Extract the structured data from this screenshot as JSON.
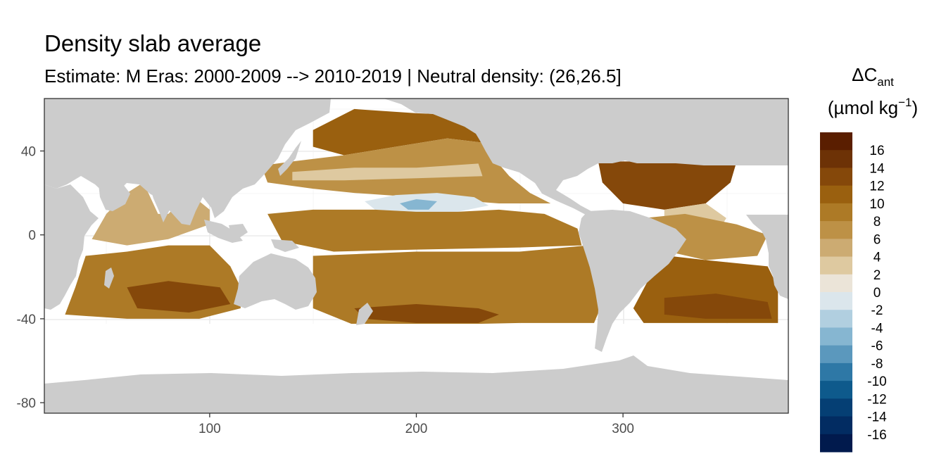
{
  "title": "Density slab average",
  "subtitle": "Estimate: M Eras: 2000-2009 --> 2010-2019 | Neutral density: (26,26.5]",
  "legend": {
    "title_symbol": "ΔC",
    "title_subscript": "ant",
    "unit_prefix": "(µmol kg",
    "unit_exponent": "−1",
    "unit_suffix": ")"
  },
  "colors": {
    "land": "#cccccc",
    "no_data": "#ffffff",
    "panel_border": "#333333",
    "grid": "#ebebeb"
  },
  "chart_data": {
    "type": "heatmap",
    "title": "Density slab average",
    "subtitle": "Estimate: M Eras: 2000-2009 --> 2010-2019 | Neutral density: (26,26.5]",
    "xlabel": "",
    "ylabel": "",
    "xlim": [
      20,
      380
    ],
    "ylim": [
      -85,
      65
    ],
    "x_ticks": [
      100,
      200,
      300
    ],
    "y_ticks": [
      40,
      0,
      -40,
      -80
    ],
    "grid": true,
    "legend_position": "right",
    "color_scale": {
      "variable": "ΔCant",
      "unit": "µmol kg−1",
      "breaks": [
        16,
        14,
        12,
        10,
        8,
        6,
        4,
        2,
        0,
        -2,
        -4,
        -6,
        -8,
        -10,
        -12,
        -14,
        -16
      ],
      "bins": [
        {
          "from": 16,
          "to": 18,
          "color": "#5a1e00"
        },
        {
          "from": 14,
          "to": 16,
          "color": "#6d3206"
        },
        {
          "from": 12,
          "to": 14,
          "color": "#85480a"
        },
        {
          "from": 10,
          "to": 12,
          "color": "#9a600f"
        },
        {
          "from": 8,
          "to": 10,
          "color": "#ad7a26"
        },
        {
          "from": 6,
          "to": 8,
          "color": "#bd9146"
        },
        {
          "from": 4,
          "to": 6,
          "color": "#ccab72"
        },
        {
          "from": 2,
          "to": 4,
          "color": "#dec9a0"
        },
        {
          "from": 0,
          "to": 2,
          "color": "#ebe4d8"
        },
        {
          "from": -2,
          "to": 0,
          "color": "#dbe6ec"
        },
        {
          "from": -4,
          "to": -2,
          "color": "#b1cfe0"
        },
        {
          "from": -6,
          "to": -4,
          "color": "#86b6d1"
        },
        {
          "from": -8,
          "to": -6,
          "color": "#5b98bd"
        },
        {
          "from": -10,
          "to": -8,
          "color": "#2e78a6"
        },
        {
          "from": -12,
          "to": -10,
          "color": "#0e5a8c"
        },
        {
          "from": -14,
          "to": -12,
          "color": "#053f74"
        },
        {
          "from": -16,
          "to": -14,
          "color": "#022c62"
        },
        {
          "from": -18,
          "to": -16,
          "color": "#011a4d"
        }
      ]
    },
    "regions": [
      {
        "name": "north-pacific-north",
        "value": 11,
        "polygon": [
          [
            150,
            50
          ],
          [
            170,
            60
          ],
          [
            200,
            58
          ],
          [
            225,
            57
          ],
          [
            235,
            50
          ],
          [
            232,
            44
          ],
          [
            215,
            46
          ],
          [
            190,
            42
          ],
          [
            165,
            38
          ],
          [
            150,
            42
          ]
        ]
      },
      {
        "name": "north-pacific-subtropical",
        "value": 6,
        "polygon": [
          [
            140,
            35
          ],
          [
            165,
            38
          ],
          [
            190,
            42
          ],
          [
            215,
            46
          ],
          [
            232,
            44
          ],
          [
            238,
            36
          ],
          [
            245,
            28
          ],
          [
            255,
            20
          ],
          [
            265,
            15
          ],
          [
            240,
            15
          ],
          [
            200,
            18
          ],
          [
            170,
            20
          ],
          [
            150,
            22
          ],
          [
            128,
            25
          ],
          [
            125,
            33
          ]
        ]
      },
      {
        "name": "kuroshio-band",
        "value": 3,
        "polygon": [
          [
            140,
            30
          ],
          [
            170,
            32
          ],
          [
            200,
            32
          ],
          [
            230,
            34
          ],
          [
            232,
            28
          ],
          [
            200,
            27
          ],
          [
            165,
            26
          ],
          [
            140,
            26
          ]
        ]
      },
      {
        "name": "central-pacific-negative",
        "value": -2,
        "polygon": [
          [
            175,
            16
          ],
          [
            190,
            19
          ],
          [
            210,
            20
          ],
          [
            228,
            18
          ],
          [
            235,
            14
          ],
          [
            220,
            11
          ],
          [
            200,
            11
          ],
          [
            180,
            12
          ]
        ]
      },
      {
        "name": "central-pacific-core",
        "value": -6,
        "polygon": [
          [
            192,
            15
          ],
          [
            200,
            17
          ],
          [
            210,
            16
          ],
          [
            206,
            12
          ],
          [
            196,
            12
          ]
        ]
      },
      {
        "name": "equatorial-pacific",
        "value": 9,
        "polygon": [
          [
            128,
            10
          ],
          [
            150,
            12
          ],
          [
            180,
            12
          ],
          [
            200,
            11
          ],
          [
            220,
            11
          ],
          [
            240,
            12
          ],
          [
            262,
            10
          ],
          [
            278,
            3
          ],
          [
            280,
            -5
          ],
          [
            250,
            -6
          ],
          [
            200,
            -7
          ],
          [
            160,
            -8
          ],
          [
            135,
            -3
          ]
        ]
      },
      {
        "name": "south-pacific",
        "value": 8,
        "polygon": [
          [
            150,
            -10
          ],
          [
            200,
            -8
          ],
          [
            250,
            -8
          ],
          [
            283,
            -5
          ],
          [
            287,
            -20
          ],
          [
            289,
            -35
          ],
          [
            286,
            -42
          ],
          [
            250,
            -42
          ],
          [
            200,
            -43
          ],
          [
            170,
            -43
          ],
          [
            150,
            -35
          ]
        ]
      },
      {
        "name": "south-pacific-core",
        "value": 13,
        "polygon": [
          [
            170,
            -35
          ],
          [
            200,
            -33
          ],
          [
            230,
            -35
          ],
          [
            240,
            -38
          ],
          [
            230,
            -42
          ],
          [
            200,
            -42
          ],
          [
            175,
            -40
          ]
        ]
      },
      {
        "name": "indian-ocean-north",
        "value": 5,
        "polygon": [
          [
            50,
            10
          ],
          [
            60,
            20
          ],
          [
            68,
            25
          ],
          [
            75,
            10
          ],
          [
            80,
            10
          ],
          [
            90,
            20
          ],
          [
            100,
            12
          ],
          [
            100,
            5
          ],
          [
            80,
            -2
          ],
          [
            60,
            -5
          ],
          [
            43,
            -2
          ]
        ]
      },
      {
        "name": "indian-ocean-south",
        "value": 9,
        "polygon": [
          [
            40,
            -10
          ],
          [
            60,
            -8
          ],
          [
            80,
            -5
          ],
          [
            100,
            -5
          ],
          [
            110,
            -15
          ],
          [
            115,
            -25
          ],
          [
            115,
            -35
          ],
          [
            95,
            -40
          ],
          [
            60,
            -40
          ],
          [
            30,
            -38
          ],
          [
            35,
            -25
          ]
        ]
      },
      {
        "name": "indian-ocean-core",
        "value": 13,
        "polygon": [
          [
            60,
            -25
          ],
          [
            80,
            -22
          ],
          [
            105,
            -25
          ],
          [
            110,
            -33
          ],
          [
            90,
            -37
          ],
          [
            65,
            -35
          ]
        ]
      },
      {
        "name": "north-atlantic",
        "value": 12,
        "polygon": [
          [
            288,
            35
          ],
          [
            330,
            35
          ],
          [
            355,
            35
          ],
          [
            352,
            25
          ],
          [
            340,
            15
          ],
          [
            320,
            12
          ],
          [
            300,
            15
          ],
          [
            290,
            25
          ]
        ]
      },
      {
        "name": "atlantic-equatorial-low",
        "value": 3,
        "polygon": [
          [
            320,
            12
          ],
          [
            340,
            15
          ],
          [
            350,
            8
          ],
          [
            345,
            0
          ],
          [
            330,
            -2
          ],
          [
            320,
            5
          ]
        ]
      },
      {
        "name": "atlantic-equatorial",
        "value": 7,
        "polygon": [
          [
            310,
            8
          ],
          [
            330,
            10
          ],
          [
            355,
            5
          ],
          [
            370,
            0
          ],
          [
            365,
            -10
          ],
          [
            340,
            -12
          ],
          [
            322,
            -8
          ],
          [
            312,
            -2
          ]
        ]
      },
      {
        "name": "south-atlantic",
        "value": 10,
        "polygon": [
          [
            322,
            -10
          ],
          [
            340,
            -12
          ],
          [
            370,
            -15
          ],
          [
            375,
            -25
          ],
          [
            375,
            -42
          ],
          [
            340,
            -42
          ],
          [
            310,
            -42
          ],
          [
            305,
            -35
          ],
          [
            312,
            -22
          ]
        ]
      },
      {
        "name": "south-atlantic-core",
        "value": 13,
        "polygon": [
          [
            320,
            -30
          ],
          [
            345,
            -28
          ],
          [
            370,
            -32
          ],
          [
            372,
            -40
          ],
          [
            340,
            -40
          ],
          [
            320,
            -38
          ]
        ]
      }
    ],
    "annotations": []
  }
}
